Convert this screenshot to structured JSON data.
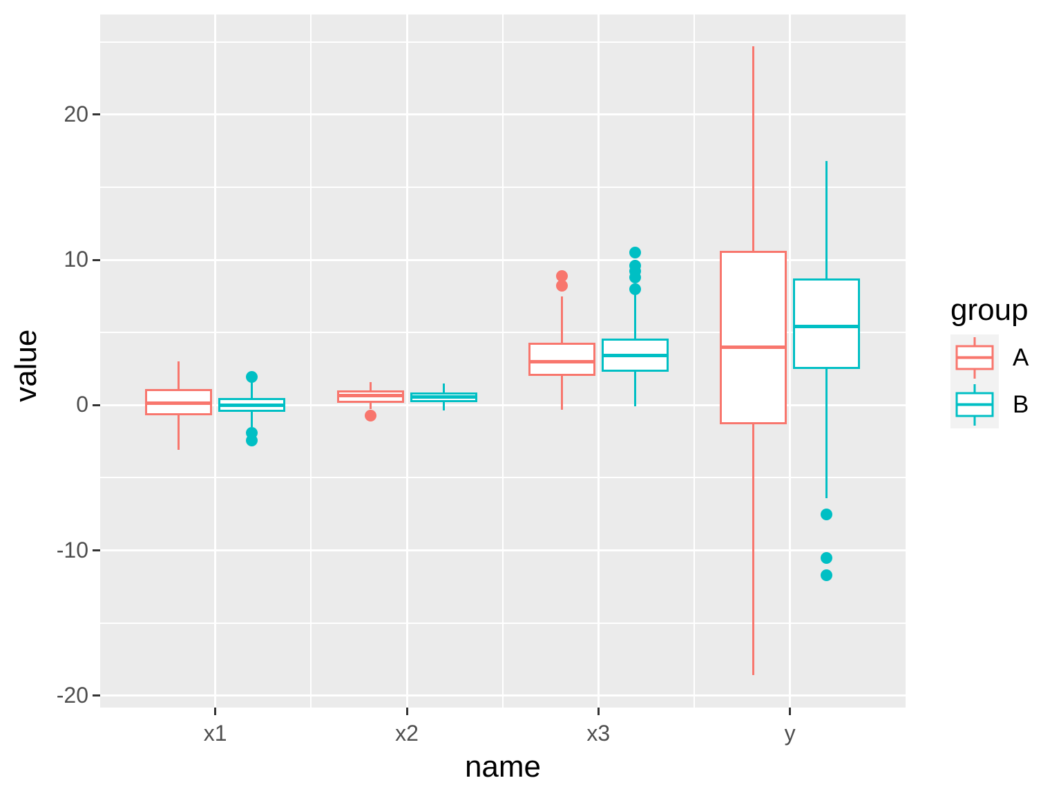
{
  "chart_data": {
    "type": "boxplot",
    "title": "",
    "xlabel": "name",
    "ylabel": "value",
    "categories": [
      "x1",
      "x2",
      "x3",
      "y"
    ],
    "y_ticks_major": [
      20,
      10,
      0,
      -10,
      -20
    ],
    "y_ticks_minor": [
      25,
      15,
      5,
      -5,
      -15
    ],
    "ylim": [
      -20.8,
      26.9
    ],
    "grid": true,
    "legend_position": "right",
    "panel_bg": "#EBEBEB",
    "grid_color": "#FFFFFF",
    "tick_color": "#333333",
    "tick_label_color": "#4D4D4D",
    "series": [
      {
        "name": "A",
        "color": "#F8766D",
        "boxes": [
          {
            "category": "x1",
            "lo": -3.1,
            "q1": -0.7,
            "med": 0.15,
            "q3": 1.1,
            "hi": 3.0,
            "outliers": []
          },
          {
            "category": "x2",
            "lo": -0.25,
            "q1": 0.15,
            "med": 0.65,
            "q3": 1.0,
            "hi": 1.6,
            "outliers": [
              -0.7
            ]
          },
          {
            "category": "x3",
            "lo": -0.3,
            "q1": 2.0,
            "med": 3.0,
            "q3": 4.3,
            "hi": 7.5,
            "outliers": [
              8.2,
              8.9
            ]
          },
          {
            "category": "y",
            "lo": -18.6,
            "q1": -1.3,
            "med": 4.0,
            "q3": 10.6,
            "hi": 24.7,
            "outliers": []
          }
        ]
      },
      {
        "name": "B",
        "color": "#00BFC4",
        "boxes": [
          {
            "category": "x1",
            "lo": -1.5,
            "q1": -0.45,
            "med": 0.0,
            "q3": 0.5,
            "hi": 1.6,
            "outliers": [
              1.95,
              -1.9,
              -2.45
            ]
          },
          {
            "category": "x2",
            "lo": -0.35,
            "q1": 0.2,
            "med": 0.55,
            "q3": 0.85,
            "hi": 1.5,
            "outliers": []
          },
          {
            "category": "x3",
            "lo": -0.1,
            "q1": 2.3,
            "med": 3.4,
            "q3": 4.6,
            "hi": 7.6,
            "outliers": [
              8.0,
              8.8,
              9.2,
              9.6,
              10.5
            ]
          },
          {
            "category": "y",
            "lo": -6.4,
            "q1": 2.5,
            "med": 5.4,
            "q3": 8.7,
            "hi": 16.8,
            "outliers": [
              -7.5,
              -10.5,
              -11.7
            ]
          }
        ]
      }
    ]
  },
  "axes": {
    "x_title": "name",
    "y_title": "value"
  },
  "legend": {
    "title": "group",
    "key_bg": "#F2F2F2",
    "items": [
      {
        "label": "A"
      },
      {
        "label": "B"
      }
    ]
  }
}
